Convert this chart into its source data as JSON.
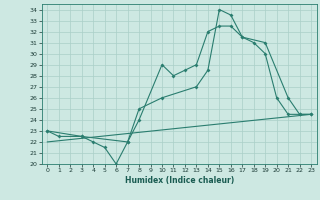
{
  "xlabel": "Humidex (Indice chaleur)",
  "bg_color": "#cde8e2",
  "line_color": "#2a7d6f",
  "grid_color": "#aacfc8",
  "ylim": [
    20,
    34.5
  ],
  "xlim": [
    -0.5,
    23.5
  ],
  "yticks": [
    20,
    21,
    22,
    23,
    24,
    25,
    26,
    27,
    28,
    29,
    30,
    31,
    32,
    33,
    34
  ],
  "xticks": [
    0,
    1,
    2,
    3,
    4,
    5,
    6,
    7,
    8,
    9,
    10,
    11,
    12,
    13,
    14,
    15,
    16,
    17,
    18,
    19,
    20,
    21,
    22,
    23
  ],
  "line1_x": [
    0,
    1,
    3,
    4,
    5,
    6,
    7,
    8,
    10,
    11,
    12,
    13,
    14,
    15,
    16,
    17,
    18,
    19,
    20,
    21,
    22,
    23
  ],
  "line1_y": [
    23,
    22.5,
    22.5,
    22,
    21.5,
    20,
    22,
    24,
    29,
    28,
    28.5,
    29,
    32,
    32.5,
    32.5,
    31.5,
    31,
    30,
    26,
    24.5,
    24.5,
    24.5
  ],
  "line2_x": [
    0,
    3,
    7,
    8,
    10,
    13,
    14,
    15,
    16,
    17,
    19,
    21,
    22,
    23
  ],
  "line2_y": [
    23,
    22.5,
    22,
    25,
    26,
    27,
    28.5,
    34,
    33.5,
    31.5,
    31,
    26,
    24.5,
    24.5
  ],
  "line3_x": [
    0,
    23
  ],
  "line3_y": [
    22,
    24.5
  ]
}
